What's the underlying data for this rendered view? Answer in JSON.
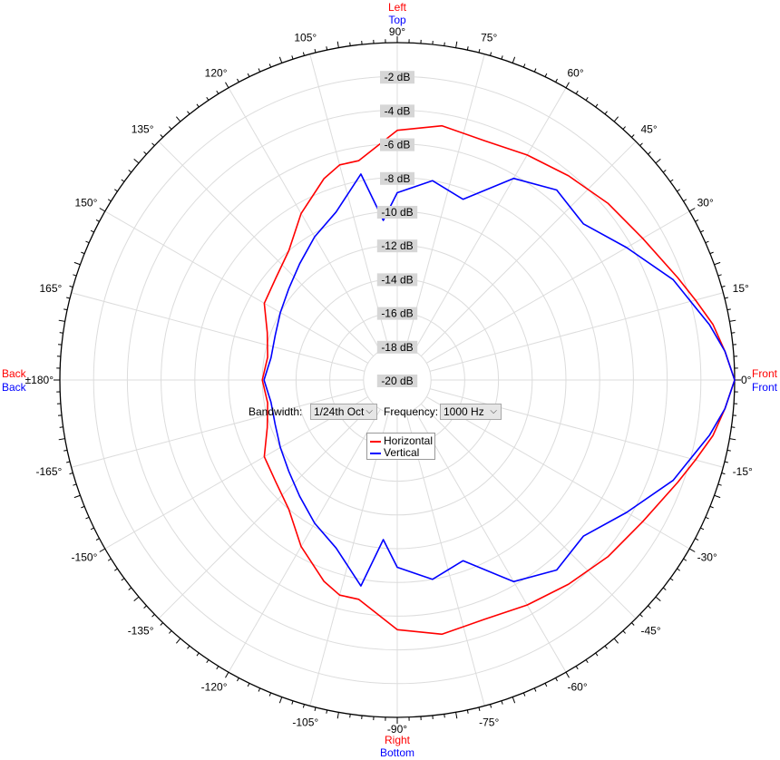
{
  "chart_data": {
    "type": "polar-line",
    "radial_unit": "dB",
    "radial_range": [
      -20,
      0
    ],
    "radial_ticks": [
      -2,
      -4,
      -6,
      -8,
      -10,
      -12,
      -14,
      -16,
      -18,
      -20
    ],
    "radial_tick_labels": [
      "-2 dB",
      "-4 dB",
      "-6 dB",
      "-8 dB",
      "-10 dB",
      "-12 dB",
      "-14 dB",
      "-16 dB",
      "-18 dB",
      "-20 dB"
    ],
    "angle_ticks": [
      0,
      15,
      30,
      45,
      60,
      75,
      90,
      105,
      120,
      135,
      150,
      165,
      180,
      -165,
      -150,
      -135,
      -120,
      -105,
      -90,
      -75,
      -60,
      -45,
      -30,
      -15
    ],
    "angle_tick_labels": [
      "0°",
      "15°",
      "30°",
      "45°",
      "60°",
      "75°",
      "90°",
      "105°",
      "120°",
      "135°",
      "150°",
      "165°",
      "±180°",
      "-165°",
      "-150°",
      "-135°",
      "-120°",
      "-105°",
      "-90°",
      "-75°",
      "-60°",
      "-45°",
      "-30°",
      "-15°"
    ],
    "direction_labels": {
      "right": [
        "Front",
        "Front"
      ],
      "left": [
        "Back",
        "Back"
      ],
      "top": [
        "Left",
        "Top"
      ],
      "bottom": [
        "Right",
        "Bottom"
      ]
    },
    "series": [
      {
        "name": "Horizontal",
        "color": "#ff0000",
        "angles": [
          0,
          5,
          10,
          15,
          20,
          30,
          40,
          50,
          60,
          70,
          80,
          90,
          100,
          105,
          110,
          120,
          130,
          140,
          150,
          160,
          170,
          180,
          -170,
          -160,
          -150,
          -140,
          -130,
          -120,
          -110,
          -105,
          -100,
          -90,
          -80,
          -70,
          -60,
          -50,
          -40,
          -30,
          -20,
          -15,
          -10,
          -5
        ],
        "values": [
          0,
          -0.5,
          -1.0,
          -1.7,
          -2.3,
          -3.2,
          -3.7,
          -4.2,
          -4.6,
          -4.9,
          -4.7,
          -5.2,
          -6.8,
          -6.8,
          -7.3,
          -8.6,
          -10.0,
          -10.6,
          -10.9,
          -11.8,
          -12.2,
          -12.0,
          -12.2,
          -11.8,
          -10.9,
          -10.6,
          -10.0,
          -8.6,
          -7.3,
          -6.8,
          -6.8,
          -5.2,
          -4.7,
          -4.9,
          -4.6,
          -4.2,
          -3.7,
          -3.2,
          -2.3,
          -1.7,
          -1.0,
          -0.5
        ]
      },
      {
        "name": "Vertical",
        "color": "#0000ff",
        "angles": [
          0,
          5,
          10,
          15,
          20,
          30,
          40,
          50,
          60,
          70,
          80,
          90,
          95,
          100,
          110,
          120,
          130,
          140,
          150,
          160,
          170,
          180,
          -170,
          -160,
          -150,
          -140,
          -130,
          -120,
          -110,
          -100,
          -95,
          -90,
          -80,
          -70,
          -60,
          -50,
          -40,
          -30,
          -20,
          -15,
          -10,
          -5
        ],
        "values": [
          0,
          -0.5,
          -1.2,
          -2.0,
          -2.6,
          -4.3,
          -5.6,
          -5.3,
          -6.2,
          -8.6,
          -8.0,
          -8.9,
          -10.5,
          -7.6,
          -9.4,
          -10.2,
          -11.0,
          -11.6,
          -12.0,
          -12.3,
          -12.4,
          -12.1,
          -12.4,
          -12.3,
          -12.0,
          -11.6,
          -11.0,
          -10.2,
          -9.4,
          -7.6,
          -10.5,
          -8.9,
          -8.0,
          -8.6,
          -6.2,
          -5.3,
          -5.6,
          -4.3,
          -2.6,
          -2.0,
          -1.2,
          -0.5
        ]
      }
    ]
  },
  "controls": {
    "bandwidth_label": "Bandwidth:",
    "bandwidth_value": "1/24th Oct",
    "frequency_label": "Frequency:",
    "frequency_value": "1000 Hz",
    "dropdown_arrow": "⌵"
  },
  "legend": {
    "items": [
      {
        "name": "Horizontal",
        "color": "#ff0000"
      },
      {
        "name": "Vertical",
        "color": "#0000ff"
      }
    ]
  }
}
